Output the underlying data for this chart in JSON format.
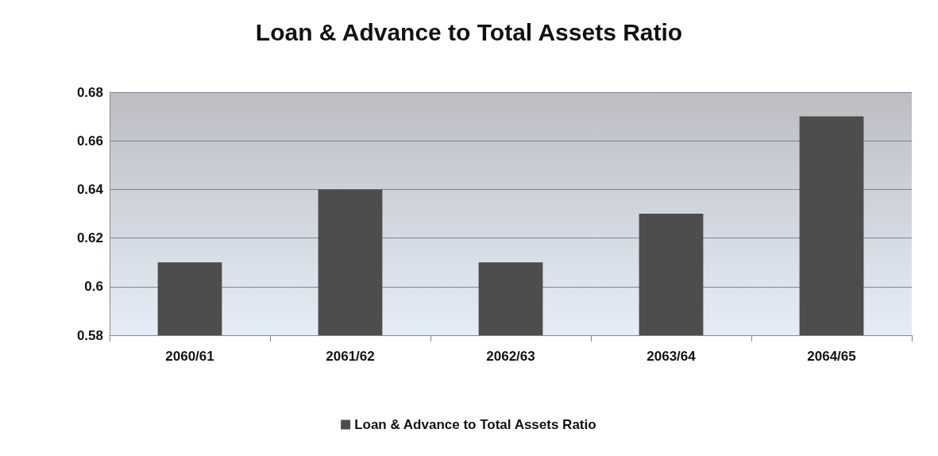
{
  "chart_data": {
    "type": "bar",
    "title": "Loan & Advance to Total Assets Ratio",
    "categories": [
      "2060/61",
      "2061/62",
      "2062/63",
      "2063/64",
      "2064/65"
    ],
    "series": [
      {
        "name": "Loan & Advance to Total Assets Ratio",
        "color": "#4d4d4d",
        "values": [
          0.61,
          0.64,
          0.61,
          0.63,
          0.67
        ]
      }
    ],
    "ylim": [
      0.58,
      0.68
    ],
    "yticks": [
      0.58,
      0.6,
      0.62,
      0.64,
      0.66,
      0.68
    ],
    "grid": "y",
    "legend": "bottom"
  }
}
